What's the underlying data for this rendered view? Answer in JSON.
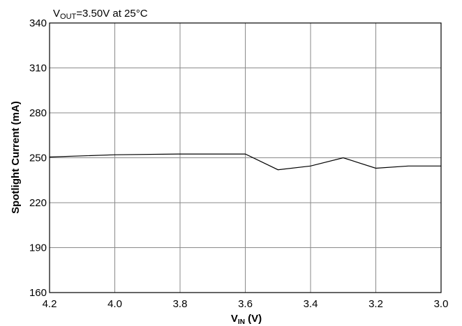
{
  "chart_data": {
    "type": "line",
    "annotation": {
      "prefix": "V",
      "subscript": "OUT",
      "suffix": "=3.50V at 25°C"
    },
    "xlabel": {
      "main": "V",
      "subscript": "IN",
      "suffix": " (V)"
    },
    "ylabel": "Spotlight Current (mA)",
    "xlim": [
      4.2,
      3.0
    ],
    "ylim": [
      160,
      340
    ],
    "x_reversed": true,
    "grid": true,
    "x_ticks": [
      4.2,
      4.0,
      3.8,
      3.6,
      3.4,
      3.2,
      3.0
    ],
    "x_tick_labels": [
      "4.2",
      "4.0",
      "3.8",
      "3.6",
      "3.4",
      "3.2",
      "3.0"
    ],
    "y_ticks": [
      160,
      190,
      220,
      250,
      280,
      310,
      340
    ],
    "y_tick_labels": [
      "160",
      "190",
      "220",
      "250",
      "280",
      "310",
      "340"
    ],
    "series": [
      {
        "x": [
          4.2,
          4.0,
          3.8,
          3.6,
          3.5,
          3.4,
          3.3,
          3.2,
          3.1,
          3.0
        ],
        "y": [
          250.5,
          252.0,
          252.5,
          252.5,
          242.0,
          244.5,
          250.0,
          243.0,
          244.5,
          244.5
        ]
      }
    ]
  }
}
